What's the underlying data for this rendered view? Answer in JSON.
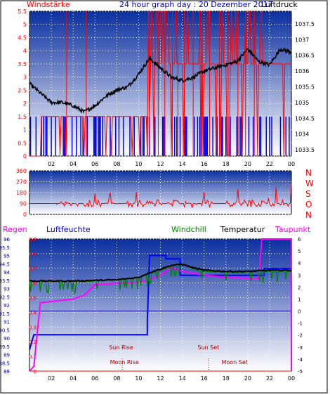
{
  "header": {
    "left_title": "Windstärke",
    "center_title": "24 hour graph day : 20 Dezember 2017",
    "right_title": "Luftdruck"
  },
  "wind_dir_labels": [
    "N",
    "W",
    "S",
    "O",
    "N"
  ],
  "colors": {
    "gradient_top": "#0a2fa0",
    "gradient_bottom": "#ffffff",
    "wind": "#ff0000",
    "gust": "#0000ff",
    "pressure": "#000000",
    "direction": "#ff0000",
    "humidity": "#0000ff",
    "windchill": "#008000",
    "temperature": "#000000",
    "dewpoint": "#ff00ff",
    "rain": "#ff0000",
    "title_red": "#ff0000",
    "title_blue": "#0000cc",
    "left_axis_red": "#ff0000",
    "right_axis_text": "#000000",
    "humidity_axis": "#000080",
    "dewpoint_axis": "#ff00ff"
  },
  "bottom_legend": {
    "rain": "Regen",
    "humidity": "Luftfeuchte",
    "windchill": "Windchill",
    "temperature": "Temperatur",
    "dewpoint": "Taupunkt"
  },
  "annotations": {
    "sunrise": "Sun Rise",
    "sunset": "Sun Set",
    "moonrise": "Moon Rise",
    "moonset": "Moon Set"
  },
  "chart_data": [
    {
      "type": "line",
      "panel": "wind_pressure",
      "x_ticks": [
        "02",
        "04",
        "06",
        "08",
        "10",
        "12",
        "14",
        "16",
        "18",
        "20",
        "22",
        "00"
      ],
      "left_axis": {
        "label": "Windstärke",
        "ticks": [
          "0",
          "0.5",
          "1",
          "1.5",
          "2",
          "2.5",
          "3",
          "3.5",
          "4",
          "4.5",
          "5",
          "5.5"
        ],
        "range": [
          0,
          5.5
        ]
      },
      "right_axis": {
        "label": "Luftdruck",
        "ticks": [
          "1033.5",
          "1034",
          "1034.5",
          "1035",
          "1035.5",
          "1036",
          "1036.5",
          "1037",
          "1037.5"
        ],
        "range": [
          1033.3,
          1037.9
        ]
      },
      "pressure": [
        [
          0,
          1035.6
        ],
        [
          1,
          1035.3
        ],
        [
          2,
          1035.0
        ],
        [
          3,
          1035.0
        ],
        [
          4,
          1034.9
        ],
        [
          5,
          1034.7
        ],
        [
          6,
          1034.9
        ],
        [
          7,
          1035.2
        ],
        [
          8,
          1035.4
        ],
        [
          9,
          1035.5
        ],
        [
          10,
          1035.9
        ],
        [
          11,
          1036.4
        ],
        [
          12,
          1036.1
        ],
        [
          13,
          1035.8
        ],
        [
          14,
          1035.7
        ],
        [
          15,
          1035.8
        ],
        [
          16,
          1036.0
        ],
        [
          17,
          1036.1
        ],
        [
          18,
          1036.2
        ],
        [
          19,
          1036.3
        ],
        [
          20,
          1036.7
        ],
        [
          21,
          1036.3
        ],
        [
          22,
          1036.2
        ],
        [
          23,
          1036.7
        ],
        [
          24,
          1036.6
        ]
      ],
      "wind_level": [
        [
          0,
          0
        ],
        [
          1,
          1.5
        ],
        [
          2,
          1.5
        ],
        [
          3,
          1.5
        ],
        [
          4,
          1.5
        ],
        [
          5,
          1.5
        ],
        [
          6,
          1.5
        ],
        [
          7,
          1.5
        ],
        [
          8,
          1.5
        ],
        [
          9,
          1.5
        ],
        [
          10,
          1.5
        ],
        [
          11,
          3.5
        ],
        [
          12,
          3.5
        ],
        [
          13,
          3.5
        ],
        [
          14,
          3.5
        ],
        [
          15,
          3.5
        ],
        [
          16,
          3.5
        ],
        [
          17,
          3.5
        ],
        [
          18,
          3.5
        ],
        [
          19,
          3.5
        ],
        [
          20,
          3.5
        ],
        [
          21,
          3.5
        ],
        [
          22,
          3.5
        ],
        [
          23,
          3.5
        ],
        [
          24,
          1.5
        ]
      ]
    },
    {
      "type": "line",
      "panel": "wind_direction",
      "left_axis": {
        "ticks": [
          "0",
          "90",
          "180",
          "270",
          "360"
        ],
        "range": [
          0,
          360
        ]
      },
      "direction_base": 90
    },
    {
      "type": "line",
      "panel": "temperature_humidity",
      "x_ticks": [
        "02",
        "04",
        "06",
        "08",
        "10",
        "12",
        "14",
        "16",
        "18",
        "20",
        "22",
        "00"
      ],
      "left_axis": {
        "label": "Regen",
        "ticks": [
          "0",
          "0.1",
          "0.2",
          "0.3",
          "0.4",
          "0.5",
          "0.6",
          "0.7",
          "0.8",
          "0.9"
        ],
        "range": [
          0,
          0.9
        ]
      },
      "humidity_axis": {
        "label": "Luftfeuchte",
        "ticks": [
          "88",
          "88.5",
          "89",
          "89.5",
          "90",
          "90.5",
          "91",
          "91.5",
          "92",
          "92.5",
          "93",
          "93.5",
          "94",
          "94.5",
          "95",
          "95.5",
          "96"
        ],
        "range": [
          88,
          96
        ]
      },
      "right_axis": {
        "label": "Taupunkt",
        "ticks": [
          "-5",
          "-4",
          "-3",
          "-2",
          "-1",
          "0",
          "1",
          "2",
          "3",
          "4",
          "5",
          "6"
        ],
        "range": [
          -5,
          6
        ]
      },
      "humidity": [
        [
          0,
          89.3
        ],
        [
          0.4,
          90.2
        ],
        [
          10.8,
          90.2
        ],
        [
          10.8,
          91.0
        ],
        [
          11.0,
          95.0
        ],
        [
          12.5,
          95.0
        ],
        [
          12.5,
          94.8
        ],
        [
          13.8,
          94.8
        ],
        [
          13.8,
          93.8
        ],
        [
          21.5,
          93.8
        ],
        [
          21.5,
          94.2
        ],
        [
          24,
          94.2
        ]
      ],
      "temperature": [
        [
          0,
          2.5
        ],
        [
          4,
          2.5
        ],
        [
          8,
          2.6
        ],
        [
          10,
          2.8
        ],
        [
          11,
          3.2
        ],
        [
          12,
          3.5
        ],
        [
          13,
          3.8
        ],
        [
          14,
          3.9
        ],
        [
          15,
          3.6
        ],
        [
          16,
          3.4
        ],
        [
          18,
          3.3
        ],
        [
          20,
          3.3
        ],
        [
          22,
          3.4
        ],
        [
          24,
          3.4
        ]
      ],
      "windchill": [
        [
          0,
          2.5
        ],
        [
          4,
          2.4
        ],
        [
          8,
          2.6
        ],
        [
          10,
          2.8
        ],
        [
          11,
          3.1
        ],
        [
          12,
          3.4
        ],
        [
          13,
          3.7
        ],
        [
          14,
          3.9
        ],
        [
          15,
          3.5
        ],
        [
          16,
          3.3
        ],
        [
          18,
          3.2
        ],
        [
          20,
          3.2
        ],
        [
          22,
          3.3
        ],
        [
          24,
          3.3
        ]
      ],
      "dewpoint": [
        [
          0,
          -5
        ],
        [
          0.4,
          -4.6
        ],
        [
          1,
          0.7
        ],
        [
          4,
          1.0
        ],
        [
          5,
          1.3
        ],
        [
          6,
          2.2
        ],
        [
          10,
          2.4
        ],
        [
          11,
          2.6
        ],
        [
          12,
          3.0
        ],
        [
          13,
          3.6
        ],
        [
          14,
          3.3
        ],
        [
          16,
          3.0
        ],
        [
          18,
          2.8
        ],
        [
          21,
          2.7
        ],
        [
          21.3,
          6.0
        ],
        [
          24,
          6.0
        ],
        [
          24,
          -5
        ]
      ],
      "rain": [
        [
          0,
          0
        ],
        [
          24,
          0
        ]
      ]
    }
  ]
}
